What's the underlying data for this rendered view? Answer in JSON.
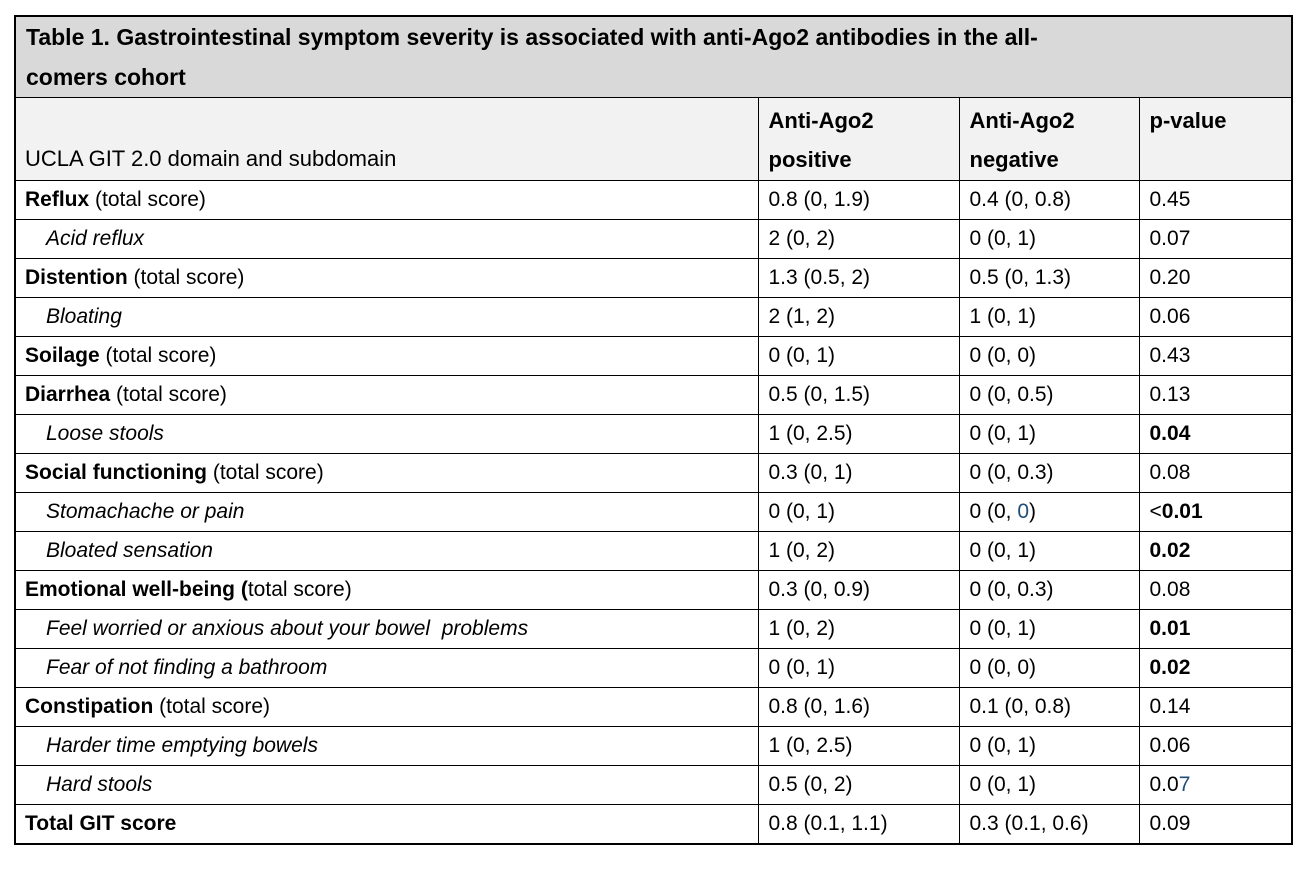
{
  "colors": {
    "row_shade": "#d9d9d9",
    "header_shade": "#f2f2f2",
    "accent_blue": "#1f4e79",
    "border": "#000000",
    "text": "#000000"
  },
  "table": {
    "title_lines": [
      "Table 1. Gastrointestinal symptom severity is associated with anti-Ago2 antibodies in the all-",
      "comers cohort"
    ],
    "columns": {
      "domain": "UCLA GIT 2.0 domain and subdomain",
      "positive": "Anti-Ago2 positive",
      "negative": "Anti-Ago2 negative",
      "pvalue": "p-value"
    },
    "rows": [
      {
        "shaded": true,
        "indent": false,
        "label": [
          {
            "t": "Reflux",
            "b": true
          },
          {
            "t": " (total score)"
          }
        ],
        "positive": [
          {
            "t": "0.8 (0, 1.9)"
          }
        ],
        "negative": [
          {
            "t": "0.4 (0, 0.8)"
          }
        ],
        "p": [
          {
            "t": "0.45"
          }
        ]
      },
      {
        "shaded": false,
        "indent": true,
        "label": [
          {
            "t": "Acid reflux",
            "i": true
          }
        ],
        "positive": [
          {
            "t": "2 (0, 2)"
          }
        ],
        "negative": [
          {
            "t": "0 (0, 1)"
          }
        ],
        "p": [
          {
            "t": "0.07"
          }
        ]
      },
      {
        "shaded": true,
        "indent": false,
        "label": [
          {
            "t": "Distention",
            "b": true
          },
          {
            "t": " (total score)"
          }
        ],
        "positive": [
          {
            "t": "1.3 (0.5, 2)"
          }
        ],
        "negative": [
          {
            "t": "0.5 (0, 1.3)"
          }
        ],
        "p": [
          {
            "t": "0.20"
          }
        ]
      },
      {
        "shaded": false,
        "indent": true,
        "label": [
          {
            "t": "Bloating",
            "i": true
          }
        ],
        "positive": [
          {
            "t": "2 (1, 2)"
          }
        ],
        "negative": [
          {
            "t": "1 (0, 1)"
          }
        ],
        "p": [
          {
            "t": "0.06"
          }
        ]
      },
      {
        "shaded": true,
        "indent": false,
        "label": [
          {
            "t": "Soilage",
            "b": true
          },
          {
            "t": " (total score)"
          }
        ],
        "positive": [
          {
            "t": "0 (0, 1)"
          }
        ],
        "negative": [
          {
            "t": "0 (0, 0)"
          }
        ],
        "p": [
          {
            "t": "0.43"
          }
        ]
      },
      {
        "shaded": true,
        "indent": false,
        "label": [
          {
            "t": "Diarrhea",
            "b": true
          },
          {
            "t": " (total score)"
          }
        ],
        "positive": [
          {
            "t": "0.5 (0, 1.5)"
          }
        ],
        "negative": [
          {
            "t": "0 (0, 0.5)"
          }
        ],
        "p": [
          {
            "t": "0.13"
          }
        ]
      },
      {
        "shaded": false,
        "indent": true,
        "label": [
          {
            "t": "Loose stools",
            "i": true
          }
        ],
        "positive": [
          {
            "t": "1 (0, 2.5)"
          }
        ],
        "negative": [
          {
            "t": "0 (0, 1)"
          }
        ],
        "p": [
          {
            "t": "0.04",
            "b": true
          }
        ]
      },
      {
        "shaded": true,
        "indent": false,
        "label": [
          {
            "t": "Social functioning",
            "b": true
          },
          {
            "t": " (total score)"
          }
        ],
        "positive": [
          {
            "t": "0.3 (0, 1)"
          }
        ],
        "negative": [
          {
            "t": "0 (0, 0.3)"
          }
        ],
        "p": [
          {
            "t": "0.08"
          }
        ]
      },
      {
        "shaded": false,
        "indent": true,
        "label": [
          {
            "t": "Stomachache or pain",
            "i": true
          }
        ],
        "positive": [
          {
            "t": "0 (0, 1)"
          }
        ],
        "negative": [
          {
            "t": "0 (0, "
          },
          {
            "t": "0",
            "c": "blue"
          },
          {
            "t": ")"
          }
        ],
        "p": [
          {
            "t": "<"
          },
          {
            "t": "0.01",
            "b": true
          }
        ]
      },
      {
        "shaded": false,
        "indent": true,
        "label": [
          {
            "t": "Bloated sensation",
            "i": true
          }
        ],
        "positive": [
          {
            "t": "1 (0, 2)"
          }
        ],
        "negative": [
          {
            "t": "0 (0, 1)"
          }
        ],
        "p": [
          {
            "t": "0.02",
            "b": true
          }
        ]
      },
      {
        "shaded": true,
        "indent": false,
        "label": [
          {
            "t": "Emotional well-being (",
            "b": true
          },
          {
            "t": "total score)"
          }
        ],
        "positive": [
          {
            "t": "0.3 (0, 0.9)"
          }
        ],
        "negative": [
          {
            "t": "0 (0, 0.3)"
          }
        ],
        "p": [
          {
            "t": "0.08"
          }
        ]
      },
      {
        "shaded": false,
        "indent": true,
        "label": [
          {
            "t": "Feel worried or anxious about your bowel  problems",
            "i": true
          }
        ],
        "positive": [
          {
            "t": "1 (0, 2)"
          }
        ],
        "negative": [
          {
            "t": "0 (0, 1)"
          }
        ],
        "p": [
          {
            "t": "0.01",
            "b": true
          }
        ]
      },
      {
        "shaded": false,
        "indent": true,
        "label": [
          {
            "t": "Fear of not finding a bathroom",
            "i": true
          }
        ],
        "positive": [
          {
            "t": "0 (0, 1)"
          }
        ],
        "negative": [
          {
            "t": "0 (0, 0)"
          }
        ],
        "p": [
          {
            "t": "0.02",
            "b": true
          }
        ]
      },
      {
        "shaded": true,
        "indent": false,
        "label": [
          {
            "t": "Constipation",
            "b": true
          },
          {
            "t": " (total score)"
          }
        ],
        "positive": [
          {
            "t": "0.8 (0, 1.6)"
          }
        ],
        "negative": [
          {
            "t": "0.1 (0, 0.8)"
          }
        ],
        "p": [
          {
            "t": "0.14"
          }
        ]
      },
      {
        "shaded": false,
        "indent": true,
        "label": [
          {
            "t": "Harder time emptying bowels",
            "i": true
          }
        ],
        "positive": [
          {
            "t": "1 (0, 2.5)"
          }
        ],
        "negative": [
          {
            "t": "0 (0, 1)"
          }
        ],
        "p": [
          {
            "t": "0.06"
          }
        ]
      },
      {
        "shaded": false,
        "indent": true,
        "label": [
          {
            "t": "Hard stools",
            "i": true
          }
        ],
        "positive": [
          {
            "t": "0.5 (0, 2)"
          }
        ],
        "negative": [
          {
            "t": "0 (0, 1)"
          }
        ],
        "p": [
          {
            "t": "0.0"
          },
          {
            "t": "7",
            "c": "blue"
          }
        ]
      },
      {
        "shaded": true,
        "indent": false,
        "label": [
          {
            "t": "Total GIT score",
            "b": true
          }
        ],
        "positive": [
          {
            "t": "0.8 (0.1, 1.1)"
          }
        ],
        "negative": [
          {
            "t": "0.3 (0.1, 0.6)"
          }
        ],
        "p": [
          {
            "t": "0.09"
          }
        ]
      }
    ]
  }
}
